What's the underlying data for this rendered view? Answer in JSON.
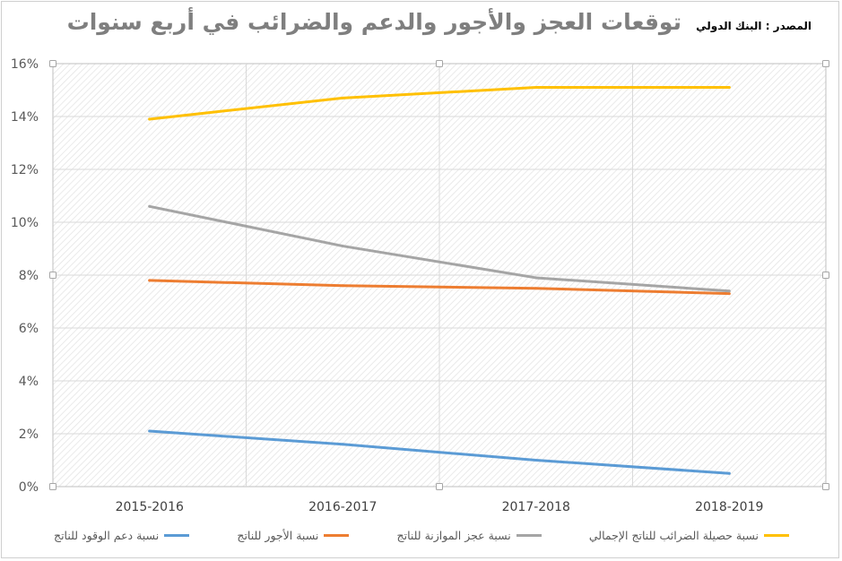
{
  "title": "توقعات العجز والأجور والدعم والضرائب في أربع سنوات",
  "source": "المصدر : البنك الدولي",
  "chart_data": {
    "type": "line",
    "categories": [
      "2015-2016",
      "2016-2017",
      "2017-2018",
      "2018-2019"
    ],
    "y_ticks": [
      "0%",
      "2%",
      "4%",
      "6%",
      "8%",
      "10%",
      "12%",
      "14%",
      "16%"
    ],
    "ylim": [
      0,
      16
    ],
    "unit": "%",
    "grid": true,
    "legend_position": "bottom",
    "series": [
      {
        "name": "نسبة دعم الوقود للناتج",
        "color": "#5b9bd5",
        "values": [
          2.1,
          1.6,
          1.0,
          0.5
        ]
      },
      {
        "name": "نسبة الأجور للناتج",
        "color": "#ed7d31",
        "values": [
          7.8,
          7.6,
          7.5,
          7.3
        ]
      },
      {
        "name": "نسبة عجز الموازنة للناتج",
        "color": "#a5a5a5",
        "values": [
          10.6,
          9.1,
          7.9,
          7.4
        ]
      },
      {
        "name": "نسبة حصيلة الضرائب للناتج الإجمالي",
        "color": "#ffc000",
        "values": [
          13.9,
          14.7,
          15.1,
          15.1
        ]
      }
    ]
  }
}
